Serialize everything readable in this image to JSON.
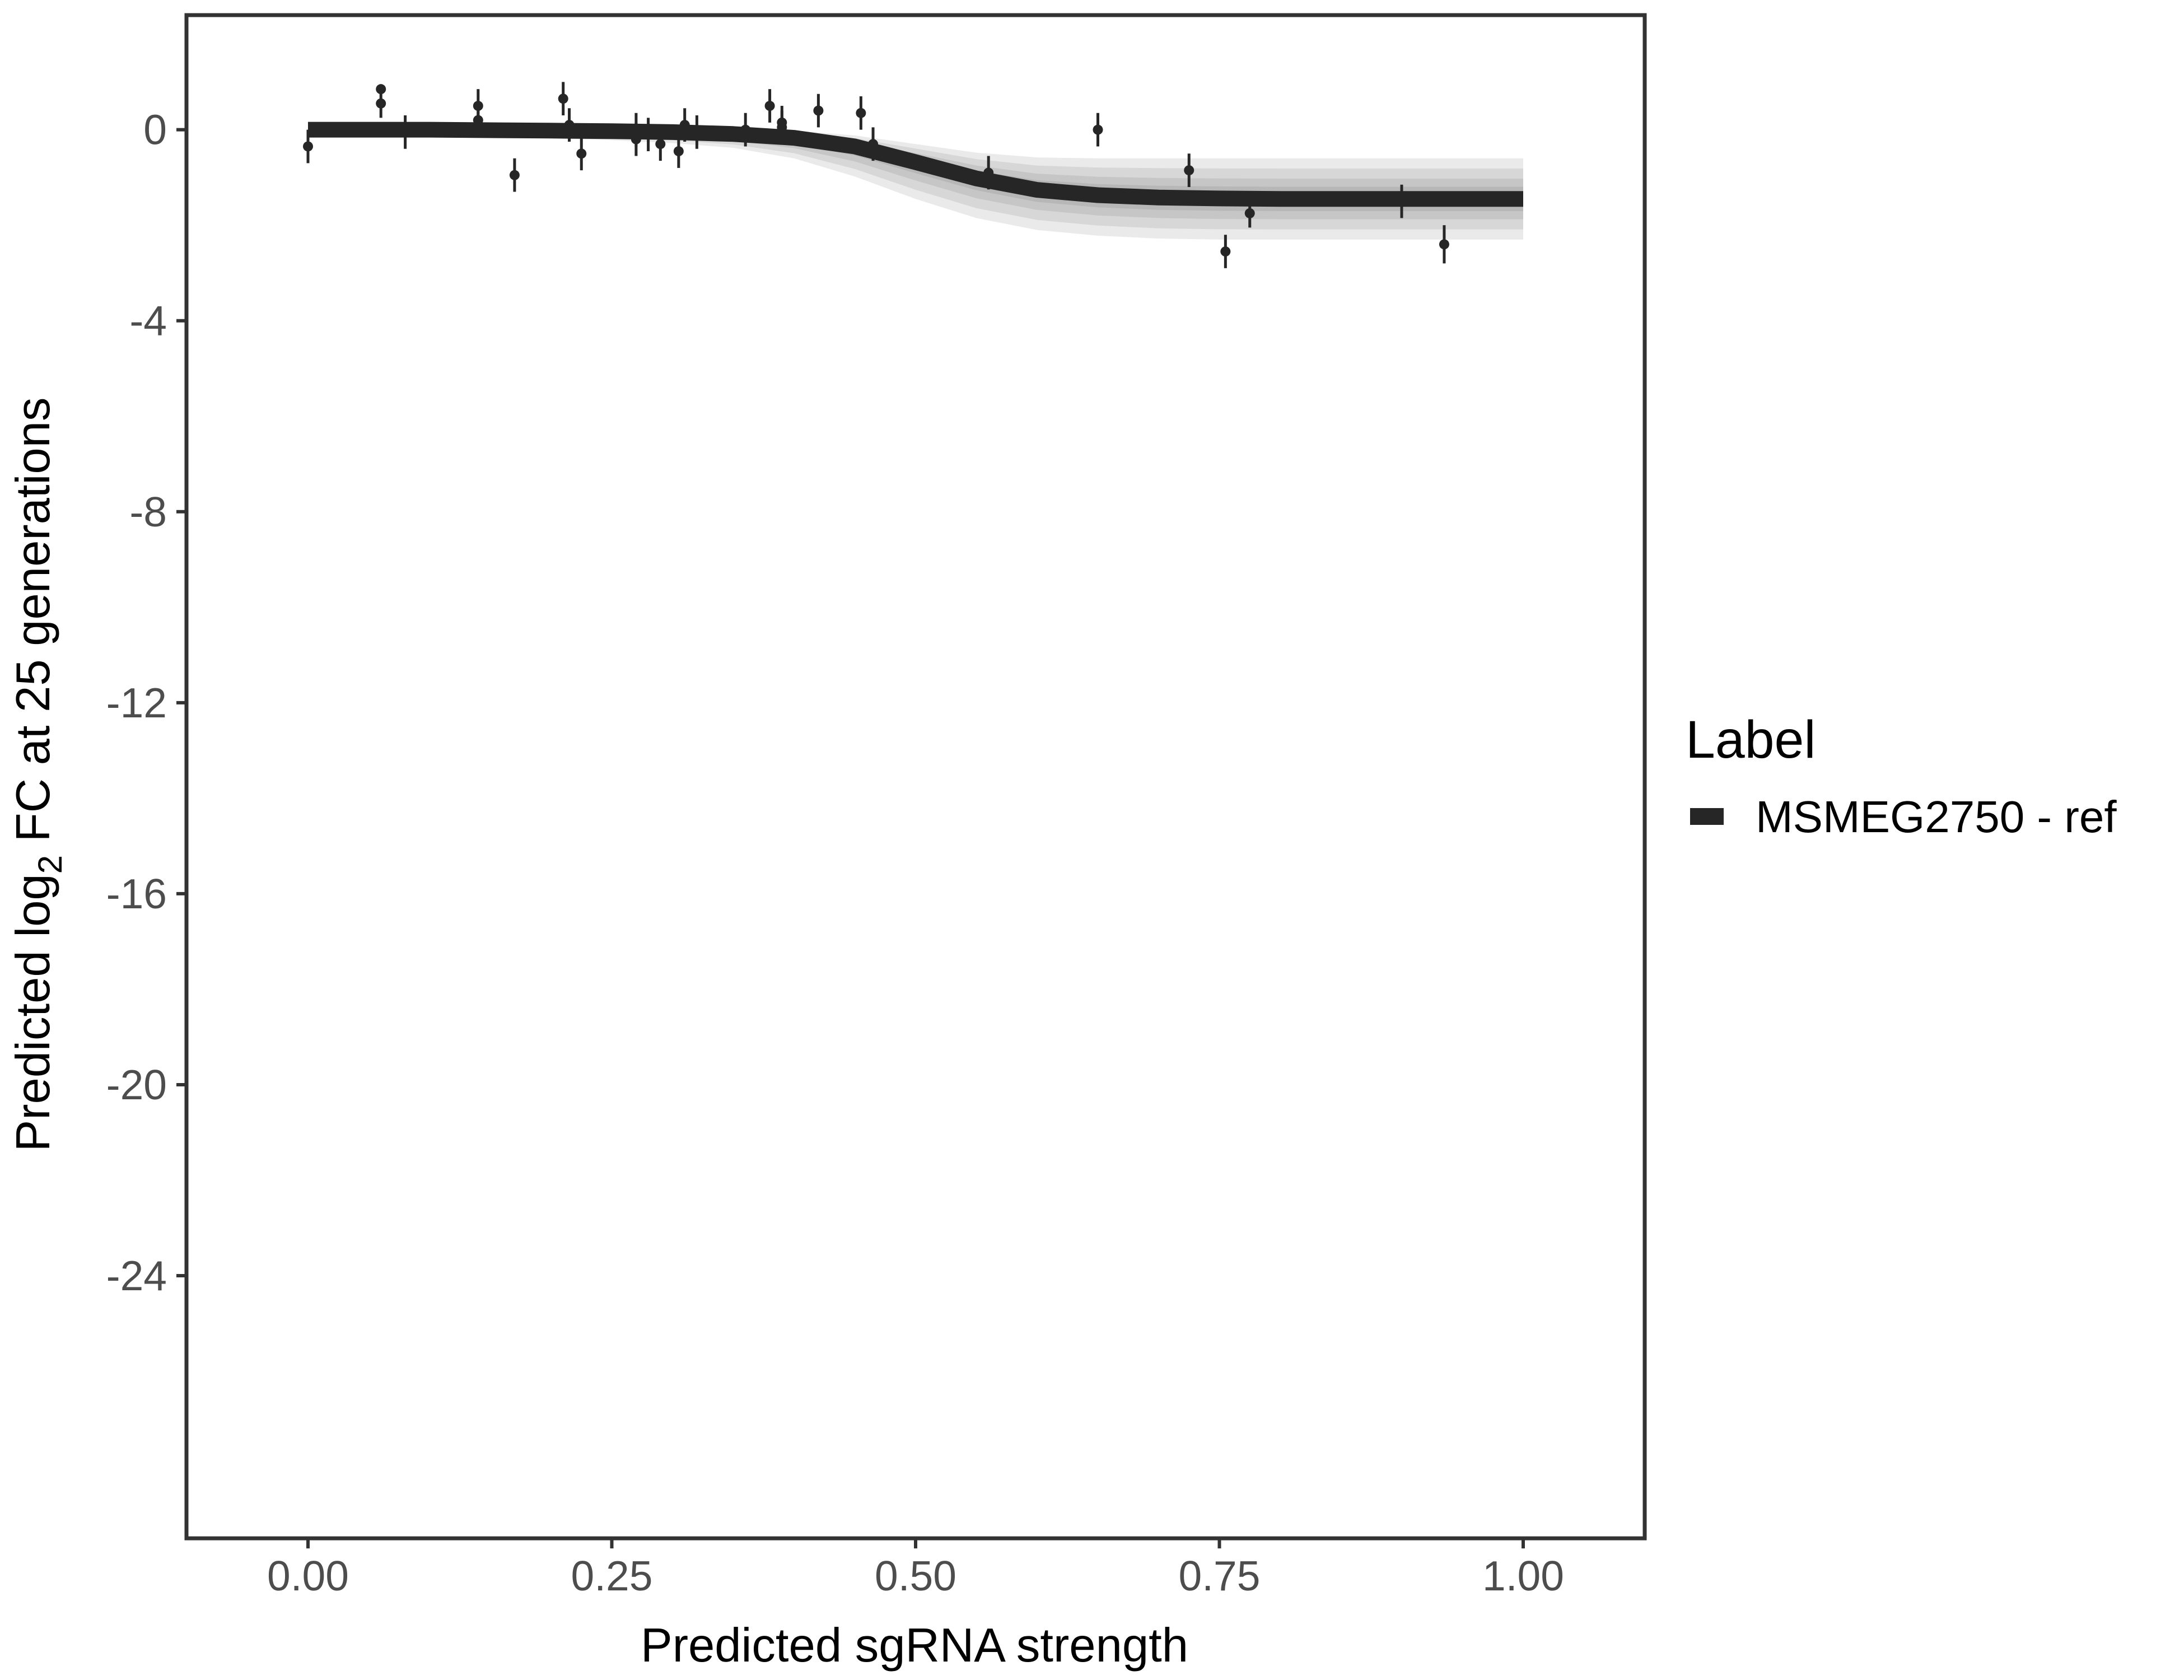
{
  "chart_data": {
    "type": "line",
    "title": "",
    "xlabel": "Predicted sgRNA strength",
    "ylabel": {
      "prefix": "Predicted  log",
      "subscript": "2",
      "suffix": " FC at 25 generations"
    },
    "xlim": [
      -0.1,
      1.1
    ],
    "ylim": [
      -29.5,
      2.4
    ],
    "x_ticks": [
      0.0,
      0.25,
      0.5,
      0.75,
      1.0
    ],
    "x_tick_labels": [
      "0.00",
      "0.25",
      "0.50",
      "0.75",
      "1.00"
    ],
    "y_ticks": [
      0,
      -4,
      -8,
      -12,
      -16,
      -20,
      -24
    ],
    "y_tick_labels": [
      "0",
      "-4",
      "-8",
      "-12",
      "-16",
      "-20",
      "-24"
    ],
    "grid": false,
    "legend": {
      "title": "Label",
      "position": "right",
      "entries": [
        {
          "label": "MSMEG2750 - ref",
          "color": "#262626"
        }
      ]
    },
    "series": [
      {
        "name": "MSMEG2750 - ref",
        "color": "#262626",
        "fit_curve": {
          "x": [
            0.0,
            0.05,
            0.1,
            0.15,
            0.2,
            0.25,
            0.3,
            0.35,
            0.4,
            0.45,
            0.5,
            0.55,
            0.6,
            0.65,
            0.7,
            0.75,
            0.8,
            0.85,
            0.9,
            0.95,
            1.0
          ],
          "y": [
            0.0,
            0.0,
            0.0,
            -0.01,
            -0.02,
            -0.03,
            -0.05,
            -0.09,
            -0.17,
            -0.35,
            -0.68,
            -1.02,
            -1.26,
            -1.37,
            -1.42,
            -1.44,
            -1.45,
            -1.45,
            -1.45,
            -1.45,
            -1.45
          ]
        },
        "band": {
          "x": [
            0.0,
            0.05,
            0.1,
            0.15,
            0.2,
            0.25,
            0.3,
            0.35,
            0.4,
            0.45,
            0.5,
            0.55,
            0.6,
            0.65,
            0.7,
            0.75,
            0.8,
            0.85,
            0.9,
            0.95,
            1.0
          ],
          "upper": [
            0.05,
            0.05,
            0.05,
            0.05,
            0.05,
            0.04,
            0.03,
            0.02,
            -0.02,
            -0.12,
            -0.3,
            -0.48,
            -0.58,
            -0.6,
            -0.6,
            -0.6,
            -0.6,
            -0.6,
            -0.6,
            -0.6,
            -0.6
          ],
          "lower": [
            -0.08,
            -0.1,
            -0.12,
            -0.15,
            -0.18,
            -0.22,
            -0.28,
            -0.38,
            -0.6,
            -0.98,
            -1.45,
            -1.85,
            -2.1,
            -2.22,
            -2.28,
            -2.3,
            -2.3,
            -2.3,
            -2.3,
            -2.3,
            -2.3
          ]
        },
        "points": [
          {
            "x": 0.0,
            "y": -0.35,
            "err": 0.35
          },
          {
            "x": 0.06,
            "y": 0.85,
            "err": 0.1
          },
          {
            "x": 0.06,
            "y": 0.55,
            "err": 0.3
          },
          {
            "x": 0.08,
            "y": -0.05,
            "err": 0.35
          },
          {
            "x": 0.14,
            "y": 0.5,
            "err": 0.35
          },
          {
            "x": 0.14,
            "y": 0.2,
            "err": 0.35
          },
          {
            "x": 0.17,
            "y": -0.95,
            "err": 0.35
          },
          {
            "x": 0.21,
            "y": 0.65,
            "err": 0.35
          },
          {
            "x": 0.215,
            "y": 0.1,
            "err": 0.35
          },
          {
            "x": 0.225,
            "y": -0.5,
            "err": 0.35
          },
          {
            "x": 0.27,
            "y": -0.2,
            "err": 0.35
          },
          {
            "x": 0.27,
            "y": 0.0,
            "err": 0.35
          },
          {
            "x": 0.28,
            "y": -0.1,
            "err": 0.35
          },
          {
            "x": 0.29,
            "y": -0.3,
            "err": 0.35
          },
          {
            "x": 0.305,
            "y": -0.45,
            "err": 0.35
          },
          {
            "x": 0.31,
            "y": 0.1,
            "err": 0.35
          },
          {
            "x": 0.32,
            "y": -0.05,
            "err": 0.35
          },
          {
            "x": 0.36,
            "y": 0.0,
            "err": 0.35
          },
          {
            "x": 0.38,
            "y": 0.5,
            "err": 0.35
          },
          {
            "x": 0.39,
            "y": 0.15,
            "err": 0.35
          },
          {
            "x": 0.39,
            "y": 0.05,
            "err": 0.35
          },
          {
            "x": 0.42,
            "y": 0.4,
            "err": 0.35
          },
          {
            "x": 0.455,
            "y": 0.35,
            "err": 0.35
          },
          {
            "x": 0.465,
            "y": -0.3,
            "err": 0.35
          },
          {
            "x": 0.56,
            "y": -0.9,
            "err": 0.35
          },
          {
            "x": 0.65,
            "y": 0.0,
            "err": 0.35
          },
          {
            "x": 0.725,
            "y": -0.85,
            "err": 0.35
          },
          {
            "x": 0.755,
            "y": -2.55,
            "err": 0.35
          },
          {
            "x": 0.775,
            "y": -1.75,
            "err": 0.3
          },
          {
            "x": 0.9,
            "y": -1.5,
            "err": 0.35
          },
          {
            "x": 0.935,
            "y": -2.4,
            "err": 0.4
          }
        ]
      }
    ]
  }
}
